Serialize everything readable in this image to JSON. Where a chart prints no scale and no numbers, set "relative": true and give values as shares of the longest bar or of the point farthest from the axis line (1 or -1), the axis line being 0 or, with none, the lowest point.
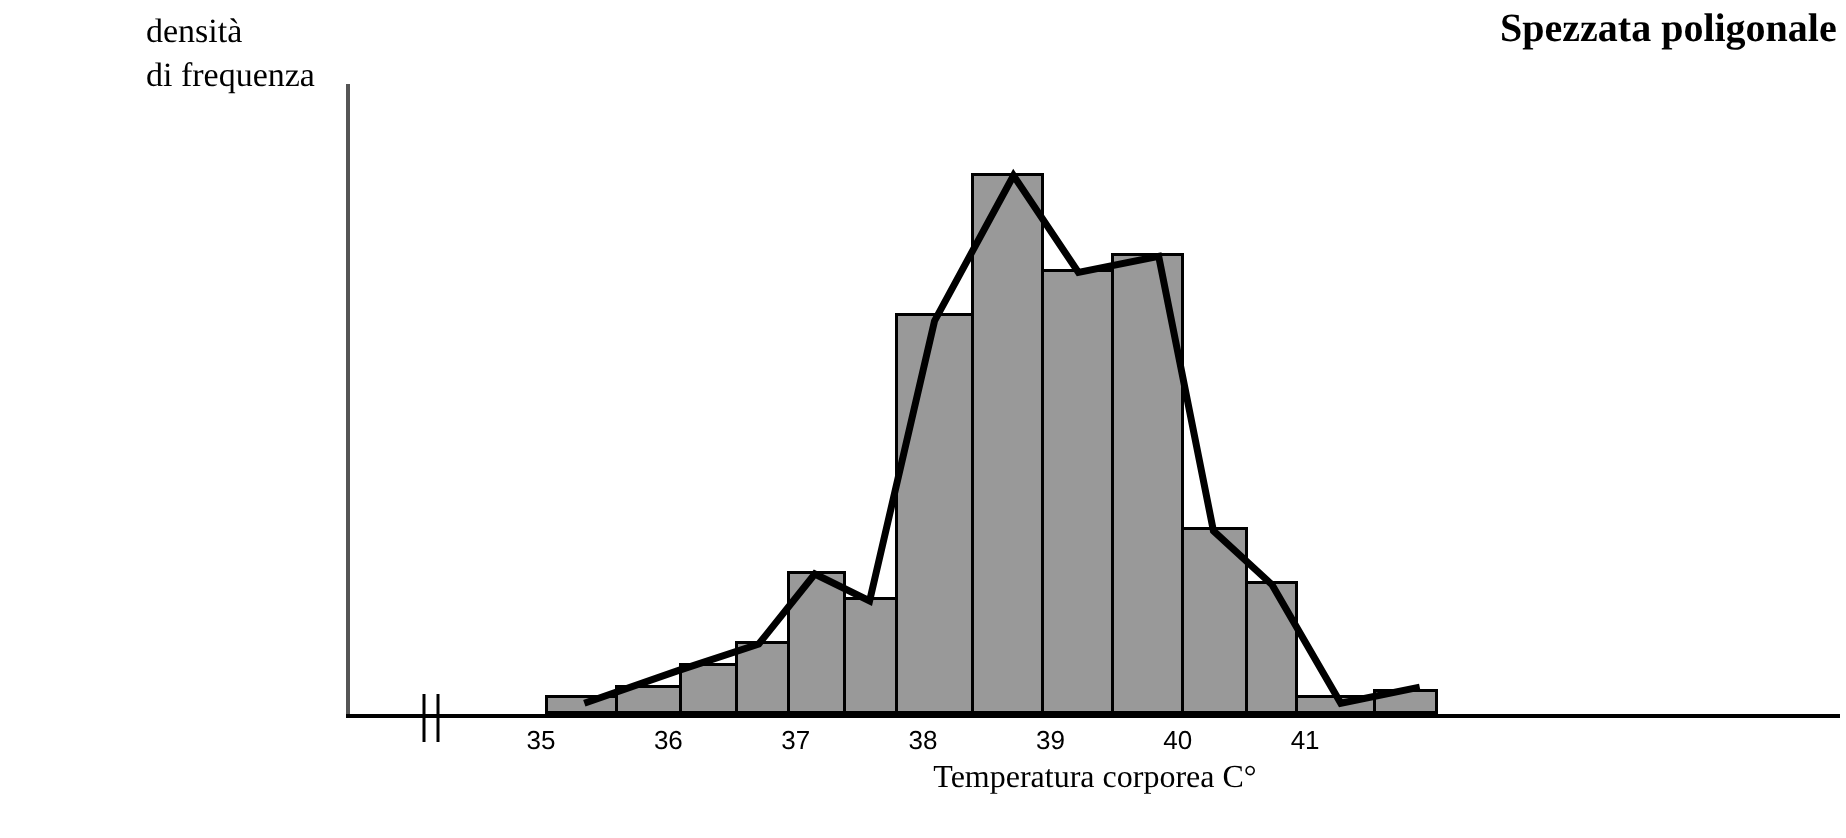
{
  "chart_data": {
    "type": "histogram",
    "title": "Spezzata poligonale",
    "xlabel": "Temperatura corporea C°",
    "ylabel": "densità\ndi frequenza",
    "relative": true,
    "color": "#999999",
    "bins": [
      35.05,
      35.6,
      36.1,
      36.55,
      36.95,
      37.4,
      37.8,
      38.4,
      38.95,
      39.5,
      40.05,
      40.55,
      40.95,
      41.55,
      42.05
    ],
    "values": [
      0.03,
      0.05,
      0.09,
      0.13,
      0.26,
      0.21,
      0.74,
      1,
      0.82,
      0.85,
      0.34,
      0.24,
      0.03,
      0.04
    ],
    "series": [
      {
        "type": "line",
        "color": "#000000",
        "x": [
          35.34,
          36.07,
          36.71,
          37.15,
          37.58,
          38.09,
          38.71,
          39.22,
          39.85,
          40.28,
          40.74,
          41.28,
          41.9
        ],
        "values": [
          0.02,
          0.08,
          0.13,
          0.26,
          0.21,
          0.73,
          1,
          0.82,
          0.85,
          0.34,
          0.24,
          0.02,
          0.05
        ]
      }
    ],
    "xlim": [
      33.5,
      45.2
    ],
    "xticks": [
      35,
      36,
      37,
      38,
      39,
      40,
      41
    ],
    "grid": false
  }
}
